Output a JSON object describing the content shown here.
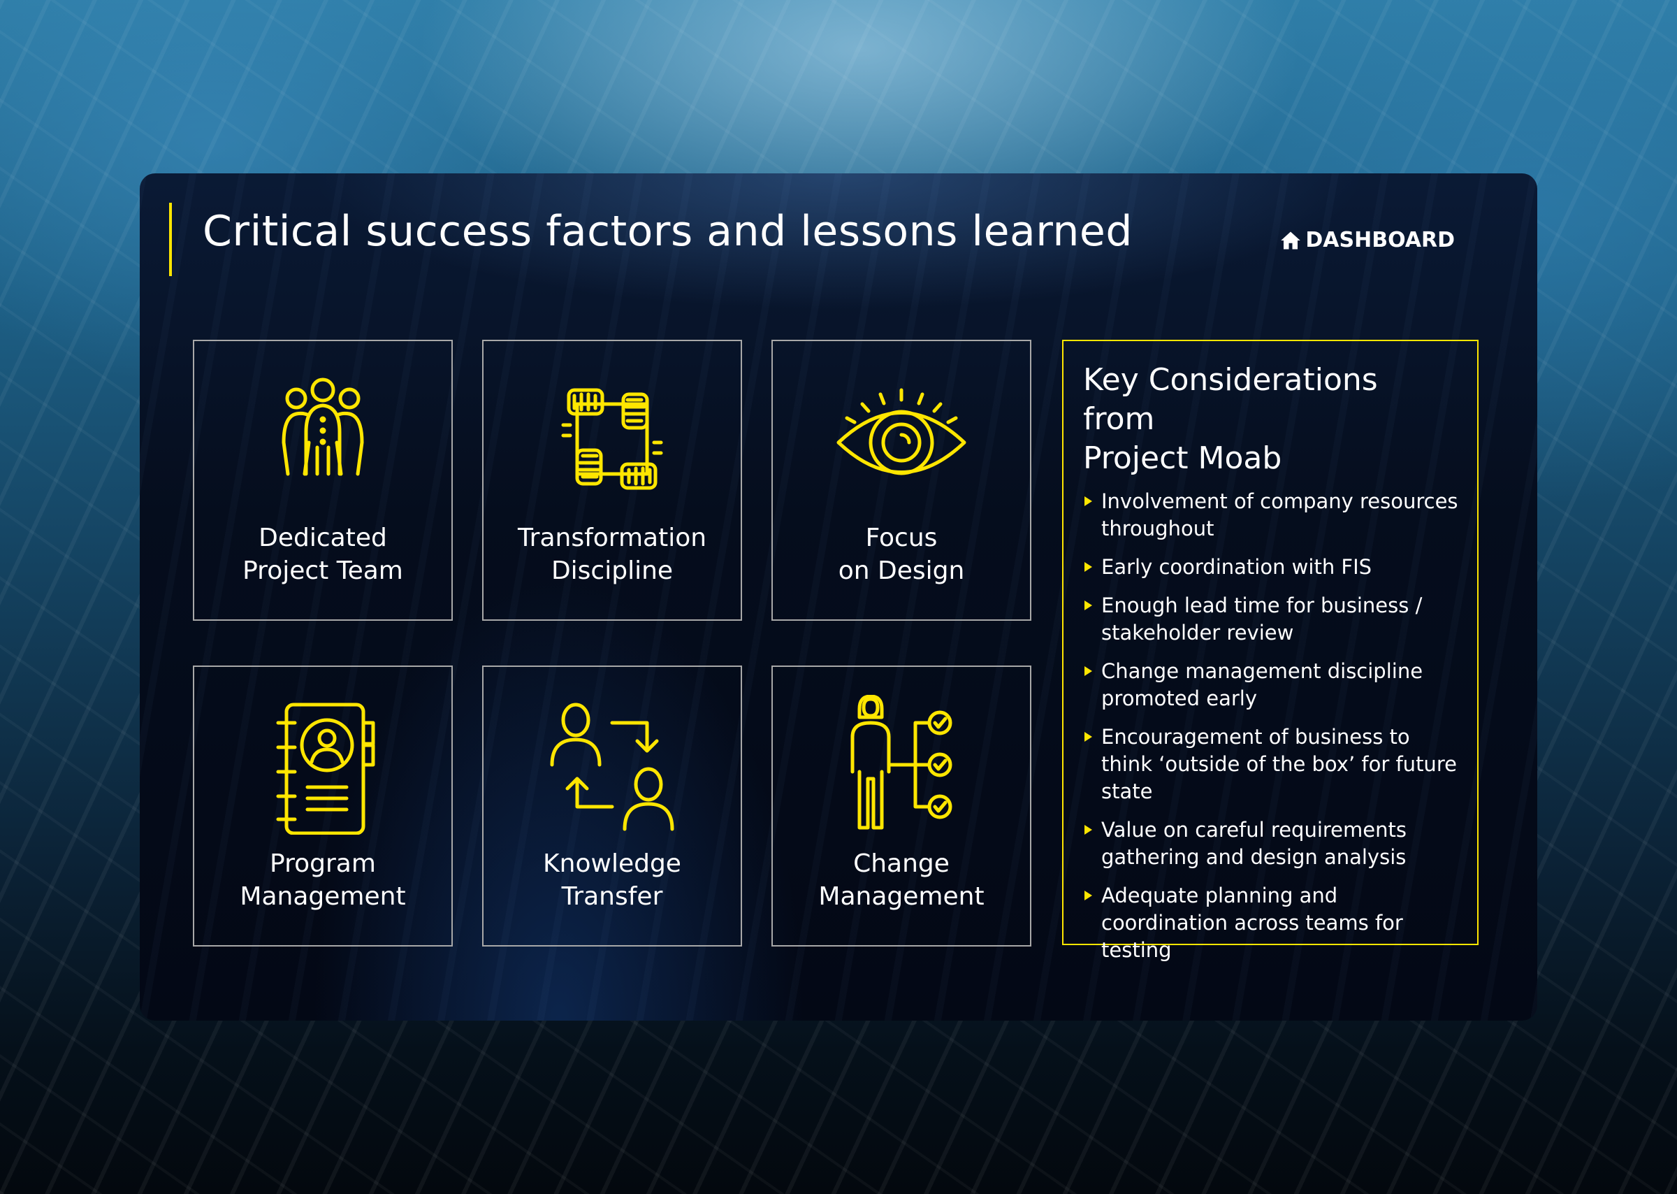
{
  "page": {
    "title": "Critical success factors and lessons learned",
    "dashboard_label": "DASHBOARD",
    "accent_color": "#ffe600"
  },
  "factors": [
    {
      "icon": "team-icon",
      "lines": [
        "Dedicated",
        "Project Team"
      ]
    },
    {
      "icon": "linked-arms-icon",
      "lines": [
        "Transformation",
        "Discipline"
      ]
    },
    {
      "icon": "eye-icon",
      "lines": [
        "Focus",
        "on Design"
      ]
    },
    {
      "icon": "contact-book-icon",
      "lines": [
        "Program",
        "Management"
      ]
    },
    {
      "icon": "exchange-people-icon",
      "lines": [
        "Knowledge",
        "Transfer"
      ]
    },
    {
      "icon": "person-checklist-icon",
      "lines": [
        "Change",
        "Management"
      ]
    }
  ],
  "considerations": {
    "title_lines": [
      "Key Considerations from",
      "Project Moab"
    ],
    "items": [
      [
        "Involvement of company resources",
        "throughout"
      ],
      [
        "Early coordination with FIS"
      ],
      [
        "Enough lead time for business /",
        "stakeholder review"
      ],
      [
        "Change management discipline",
        "promoted early"
      ],
      [
        "Encouragement of business to",
        "think ‘outside of the box’ for future",
        "state"
      ],
      [
        "Value on careful requirements",
        "gathering and design analysis"
      ],
      [
        "Adequate planning and",
        "coordination across teams for",
        "testing"
      ]
    ]
  }
}
